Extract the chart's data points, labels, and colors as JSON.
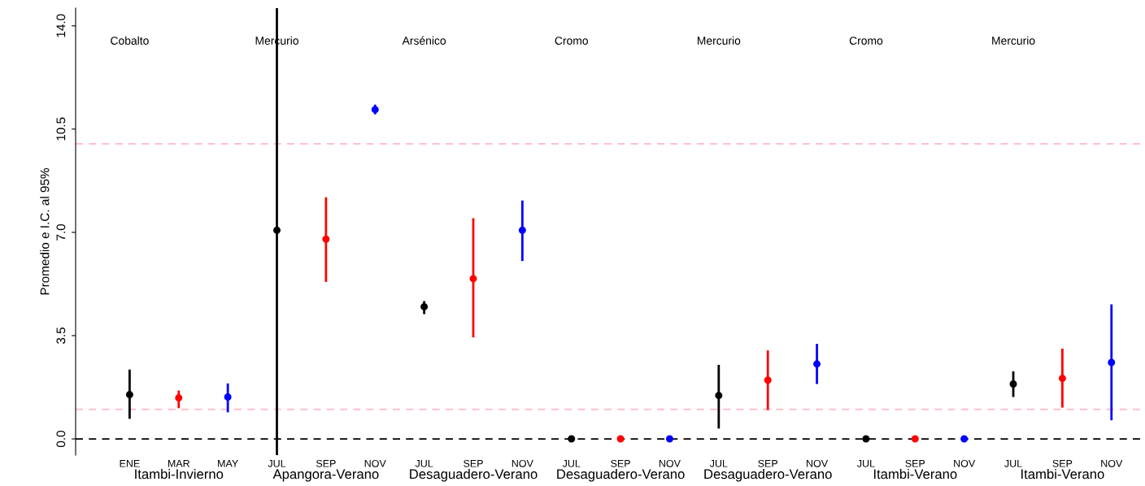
{
  "chart_data": {
    "type": "scatter",
    "ylabel": "Promedio e I.C. al 95%",
    "categories": [
      "ENE",
      "MAR",
      "MAY",
      "JUL",
      "SEP",
      "NOV",
      "JUL",
      "SEP",
      "NOV",
      "JUL",
      "SEP",
      "NOV",
      "JUL",
      "SEP",
      "NOV",
      "JUL",
      "SEP",
      "NOV",
      "JUL",
      "SEP",
      "NOV"
    ],
    "values": [
      1.5,
      1.39,
      1.42,
      7.07,
      6.77,
      11.16,
      4.48,
      5.43,
      7.07,
      0,
      0,
      0,
      1.47,
      1.99,
      2.54,
      0,
      0,
      0,
      1.86,
      2.05,
      2.59
    ],
    "errors": [
      [
        0.68,
        2.35
      ],
      [
        1.04,
        1.64
      ],
      [
        0.9,
        1.88
      ],
      [
        -0.55,
        14.6
      ],
      [
        5.32,
        8.19
      ],
      [
        11.0,
        11.33
      ],
      [
        4.23,
        4.67
      ],
      [
        3.44,
        7.48
      ],
      [
        6.03,
        8.08
      ],
      null,
      null,
      null,
      [
        0.35,
        2.51
      ],
      [
        0.98,
        3.0
      ],
      [
        1.86,
        3.22
      ],
      null,
      null,
      null,
      [
        1.42,
        2.29
      ],
      [
        1.06,
        3.06
      ],
      [
        0.63,
        4.56
      ]
    ],
    "colors": [
      "#000000",
      "#ff0000",
      "#0000ff",
      "#000000",
      "#ff0000",
      "#0000ff",
      "#000000",
      "#ff0000",
      "#0000ff",
      "#000000",
      "#ff0000",
      "#0000ff",
      "#000000",
      "#ff0000",
      "#0000ff",
      "#000000",
      "#ff0000",
      "#0000ff",
      "#000000",
      "#ff0000",
      "#0000ff"
    ],
    "marker": "circle",
    "ylim": [
      -0.55,
      14.6
    ],
    "yticks": [
      {
        "value": 0,
        "label": "0.0"
      },
      {
        "value": 3.5,
        "label": "3.5"
      },
      {
        "value": 7,
        "label": "7.0"
      },
      {
        "value": 10.5,
        "label": "10.5"
      },
      {
        "value": 14,
        "label": "14.0"
      }
    ],
    "ref_lines": [
      {
        "axis": "y",
        "value": 0,
        "color": "#000000",
        "line_style": "dashed"
      },
      {
        "axis": "y",
        "value": 1.0,
        "color": "#ffc0cb",
        "line_style": "dashed"
      },
      {
        "axis": "y",
        "value": 10.0,
        "color": "#ffc0cb",
        "line_style": "dashed"
      }
    ],
    "annotations": [
      "Cobalto",
      "Mercurio",
      "Arsénico",
      "Cromo",
      "Mercurio",
      "Cromo",
      "Mercurio",
      "Itambi-Invierno",
      "Apangora-Verano",
      "Desaguadero-Verano",
      "Desaguadero-Verano",
      "Desaguadero-Verano",
      "Itambi-Verano",
      "Itambi-Verano"
    ]
  }
}
